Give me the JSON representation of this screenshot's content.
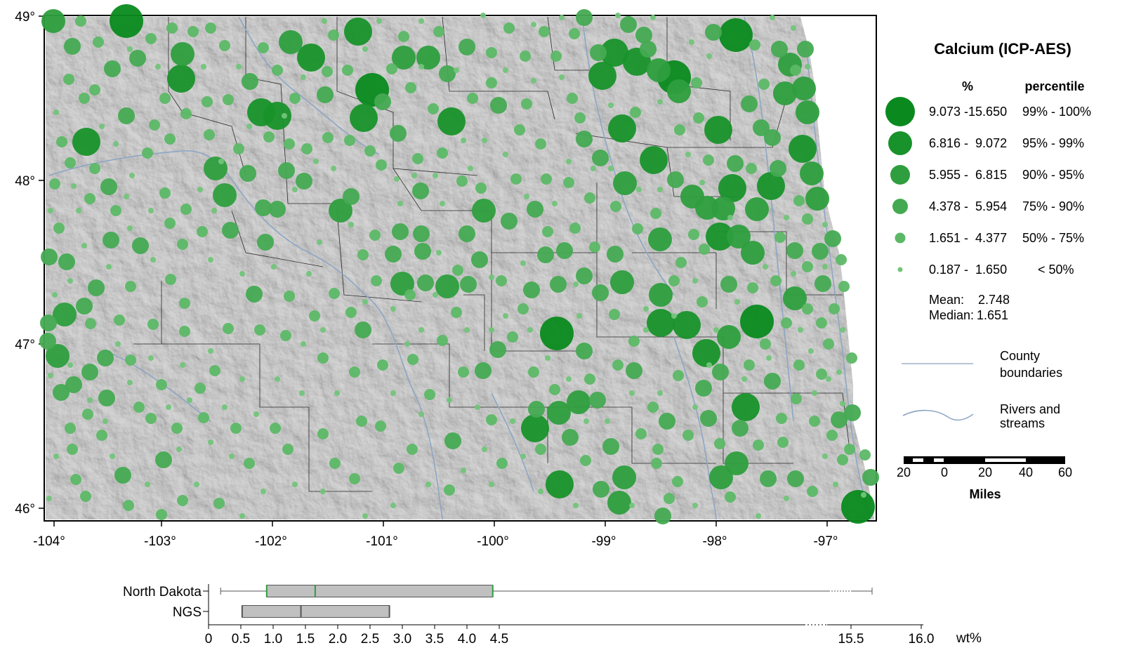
{
  "legend": {
    "title": "Calcium (ICP-AES)",
    "col_pct": "%",
    "col_percentile": "percentile",
    "classes": [
      {
        "range": "9.073 -15.650",
        "percentile": "99% - 100%",
        "color": "#0a8a1e"
      },
      {
        "range": "6.816 -  9.072",
        "percentile": "95% - 99%",
        "color": "#18922a"
      },
      {
        "range": "5.955 -  6.815",
        "percentile": "90% - 95%",
        "color": "#2e9e3e"
      },
      {
        "range": "4.378 -  5.954",
        "percentile": "75% - 90%",
        "color": "#44aa52"
      },
      {
        "range": "1.651 -  4.377",
        "percentile": "50% - 75%",
        "color": "#5cb866"
      },
      {
        "range": "0.187 -  1.650",
        "percentile": "< 50%",
        "color": "#72c47a"
      }
    ],
    "mean_label": "Mean:",
    "mean_value": "2.748",
    "median_label": "Median:",
    "median_value": "1.651",
    "county_label_1": "County",
    "county_label_2": "boundaries",
    "river_label_1": "Rivers and",
    "river_label_2": "streams",
    "scale_ticks": [
      "20",
      "0",
      "20",
      "40",
      "60"
    ],
    "scale_unit": "Miles"
  },
  "map": {
    "lon_labels": [
      "-104°",
      "-103°",
      "-102°",
      "-101°",
      "-100°",
      "-99°",
      "-98°",
      "-97°"
    ],
    "lat_labels": [
      "49°",
      "48°",
      "47°",
      "46°"
    ]
  },
  "boxplot": {
    "rows": [
      {
        "label": "North Dakota",
        "min": 0.187,
        "q1": 0.9,
        "median": 1.651,
        "q3": 4.4,
        "max": 15.65
      },
      {
        "label": "NGS",
        "q1": 0.52,
        "median": 1.43,
        "q3": 2.8
      }
    ],
    "ticks": [
      "0",
      "0.5",
      "1.0",
      "1.5",
      "2.0",
      "2.5",
      "3.0",
      "3.5",
      "4.0",
      "4.5",
      "15.5",
      "16.0"
    ],
    "unit": "wt%"
  }
}
